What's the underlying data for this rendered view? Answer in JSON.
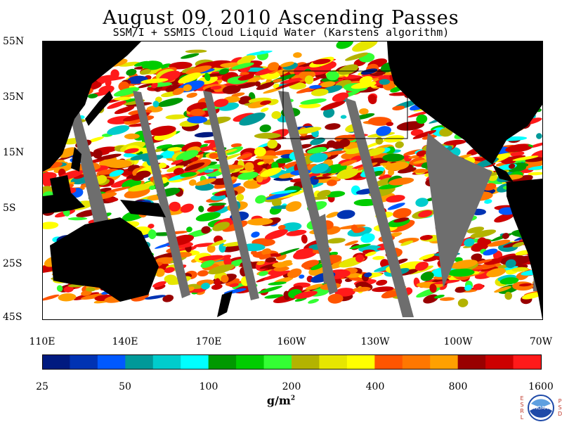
{
  "title": "August 09, 2010  Ascending Passes",
  "subtitle": "SSM/I + SSMIS Cloud Liquid Water (Karstens algorithm)",
  "lat_labels": [
    "55N",
    "35N",
    "15N",
    "5S",
    "25S",
    "45S"
  ],
  "lon_labels": [
    "110E",
    "140E",
    "170E",
    "160W",
    "130W",
    "100W",
    "70W"
  ],
  "colorbar": {
    "tick_labels": [
      "25",
      "50",
      "100",
      "200",
      "400",
      "800",
      "1600"
    ],
    "colors": [
      "#001a80",
      "#0033b3",
      "#0059ff",
      "#009999",
      "#00cccc",
      "#00ffff",
      "#009900",
      "#00cc00",
      "#33ff33",
      "#b3b300",
      "#e6e600",
      "#ffff00",
      "#ff5500",
      "#ff7700",
      "#ffa000",
      "#990000",
      "#cc0000",
      "#ff1a1a"
    ]
  },
  "unit": "g/m",
  "unit_sup": "2",
  "logo": {
    "left_letters": [
      "E",
      "S",
      "R",
      "L"
    ],
    "right_letters": [
      "P",
      "S",
      "D"
    ],
    "text": "NOAA"
  },
  "map_colors": {
    "land": "#000000",
    "no_data": "#6e6e6e",
    "clear": "#ffffff",
    "box": "#000000"
  }
}
